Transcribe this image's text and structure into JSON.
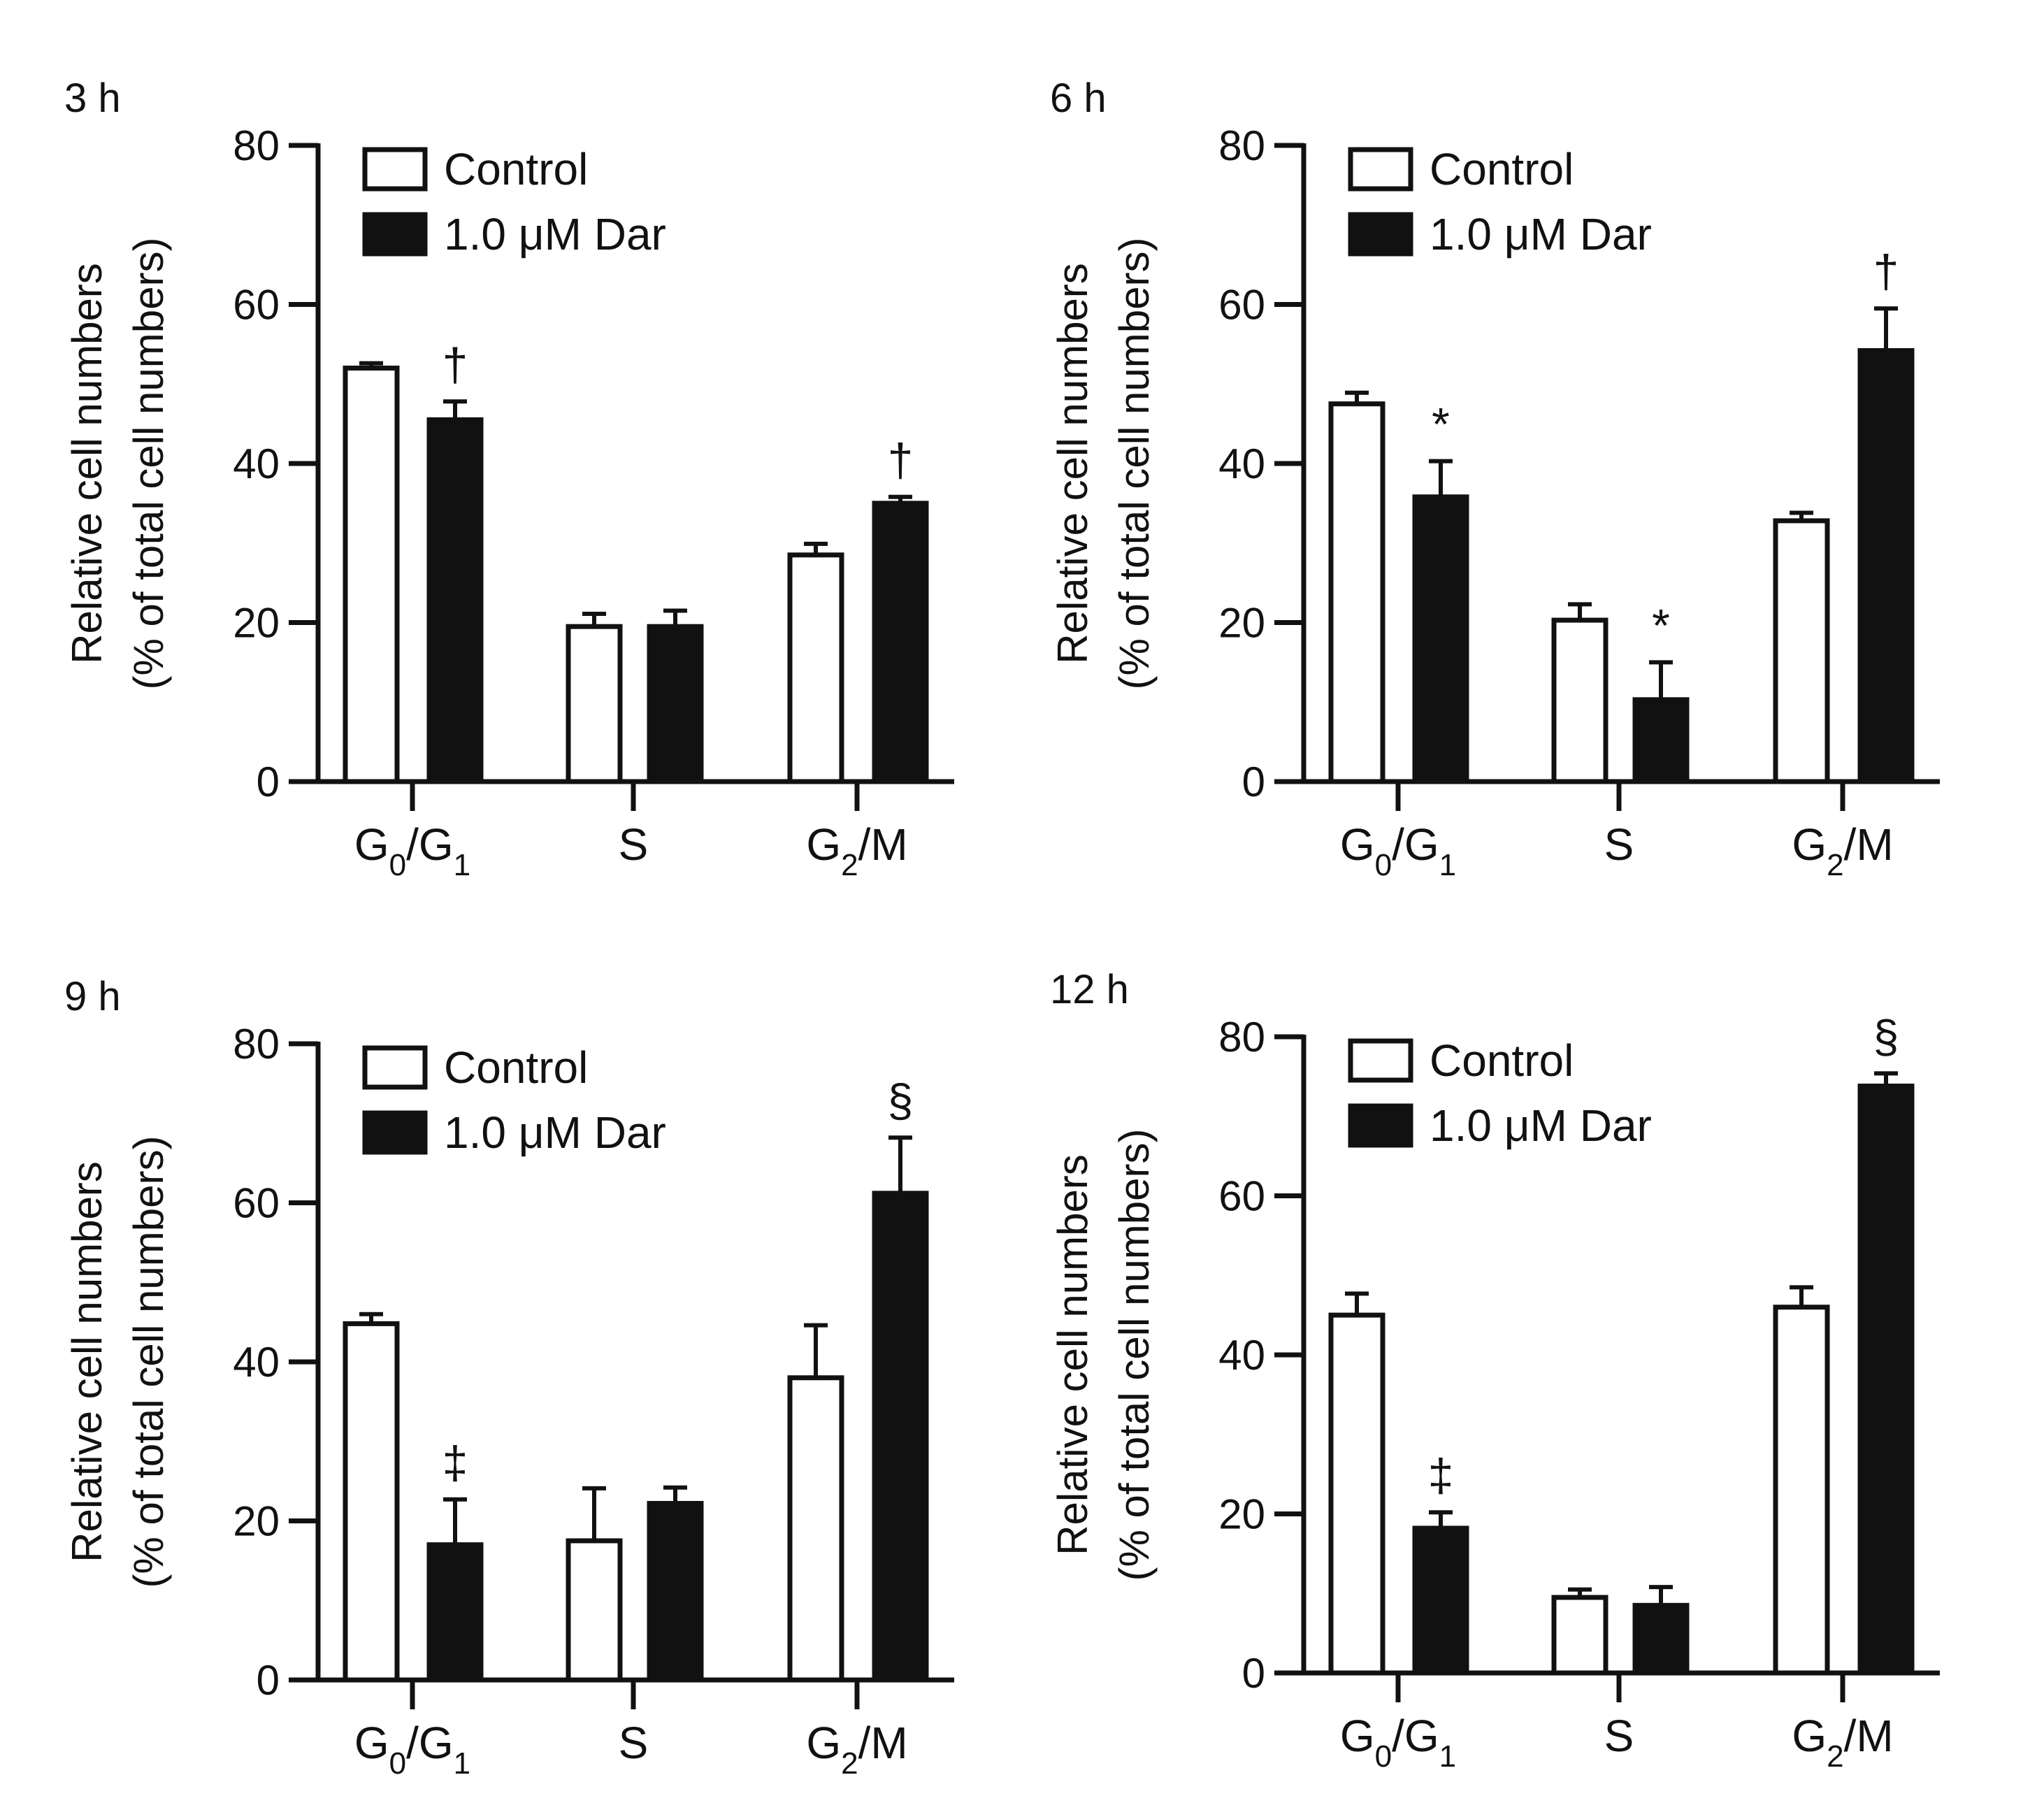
{
  "chart_data": [
    {
      "type": "bar",
      "title": "3 h",
      "ylabel": [
        "Relative cell numbers",
        "(% of total cell numbers)"
      ],
      "ylim": [
        0,
        80
      ],
      "yticks": [
        0,
        20,
        40,
        60,
        80
      ],
      "categories": [
        {
          "base": "G",
          "sub1": "0",
          "mid": "/G",
          "sub2": "1"
        },
        {
          "base": "S",
          "sub1": "",
          "mid": "",
          "sub2": ""
        },
        {
          "base": "G",
          "sub1": "2",
          "mid": "/M",
          "sub2": ""
        }
      ],
      "series": [
        {
          "name": "Control",
          "values": [
            52,
            19.5,
            28.5
          ],
          "errors": [
            0.6,
            1.6,
            1.4
          ],
          "marks": [
            "",
            "",
            ""
          ]
        },
        {
          "name": "1.0 μM Dar",
          "values": [
            45.5,
            19.5,
            35
          ],
          "errors": [
            2.3,
            2.0,
            0.8
          ],
          "marks": [
            "†",
            "",
            "†"
          ]
        }
      ]
    },
    {
      "type": "bar",
      "title": "6 h",
      "ylabel": [
        "Relative cell numbers",
        "(% of total cell numbers)"
      ],
      "ylim": [
        0,
        80
      ],
      "yticks": [
        0,
        20,
        40,
        60,
        80
      ],
      "categories": [
        {
          "base": "G",
          "sub1": "0",
          "mid": "/G",
          "sub2": "1"
        },
        {
          "base": "S",
          "sub1": "",
          "mid": "",
          "sub2": ""
        },
        {
          "base": "G",
          "sub1": "2",
          "mid": "/M",
          "sub2": ""
        }
      ],
      "series": [
        {
          "name": "Control",
          "values": [
            47.5,
            20.3,
            32.8
          ],
          "errors": [
            1.4,
            2.0,
            1.0
          ],
          "marks": [
            "",
            "",
            ""
          ]
        },
        {
          "name": "1.0 μM Dar",
          "values": [
            35.8,
            10.3,
            54.2
          ],
          "errors": [
            4.5,
            4.7,
            5.3
          ],
          "marks": [
            "*",
            "*",
            "†"
          ]
        }
      ]
    },
    {
      "type": "bar",
      "title": "9 h",
      "ylabel": [
        "Relative cell numbers",
        "(% of total cell numbers)"
      ],
      "ylim": [
        0,
        80
      ],
      "yticks": [
        0,
        20,
        40,
        60,
        80
      ],
      "categories": [
        {
          "base": "G",
          "sub1": "0",
          "mid": "/G",
          "sub2": "1"
        },
        {
          "base": "S",
          "sub1": "",
          "mid": "",
          "sub2": ""
        },
        {
          "base": "G",
          "sub1": "2",
          "mid": "/M",
          "sub2": ""
        }
      ],
      "series": [
        {
          "name": "Control",
          "values": [
            44.8,
            17.5,
            38
          ],
          "errors": [
            1.2,
            6.6,
            6.6
          ],
          "marks": [
            "",
            "",
            ""
          ]
        },
        {
          "name": "1.0 μM Dar",
          "values": [
            17,
            22.2,
            61.2
          ],
          "errors": [
            5.7,
            2.0,
            7.0
          ],
          "marks": [
            "‡",
            "",
            "§"
          ]
        }
      ]
    },
    {
      "type": "bar",
      "title": "12 h",
      "ylabel": [
        "Relative cell numbers",
        "(% of total cell numbers)"
      ],
      "ylim": [
        0,
        80
      ],
      "yticks": [
        0,
        20,
        40,
        60,
        80
      ],
      "categories": [
        {
          "base": "G",
          "sub1": "0",
          "mid": "/G",
          "sub2": "1"
        },
        {
          "base": "S",
          "sub1": "",
          "mid": "",
          "sub2": ""
        },
        {
          "base": "G",
          "sub1": "2",
          "mid": "/M",
          "sub2": ""
        }
      ],
      "series": [
        {
          "name": "Control",
          "values": [
            45,
            9.5,
            46
          ],
          "errors": [
            2.7,
            1.0,
            2.5
          ],
          "marks": [
            "",
            "",
            ""
          ]
        },
        {
          "name": "1.0 μM Dar",
          "values": [
            18.2,
            8.5,
            73.8
          ],
          "errors": [
            2.0,
            2.3,
            1.6
          ],
          "marks": [
            "‡",
            "",
            "§"
          ]
        }
      ]
    }
  ]
}
